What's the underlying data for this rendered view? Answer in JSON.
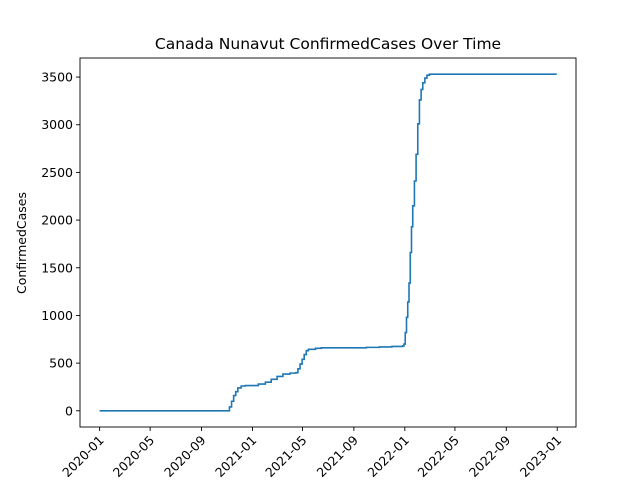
{
  "chart_data": {
    "type": "line",
    "title": "Canada Nunavut ConfirmedCases Over Time",
    "xlabel": "",
    "ylabel": "ConfirmedCases",
    "x_axis": "date",
    "xlim": [
      "2019-11-15",
      "2023-02-15"
    ],
    "ylim": [
      -170,
      3700
    ],
    "grid": false,
    "legend": "none",
    "line_color": "#1f77b4",
    "x_ticks": [
      "2020-01",
      "2020-05",
      "2020-09",
      "2021-01",
      "2021-05",
      "2021-09",
      "2022-01",
      "2022-05",
      "2022-09",
      "2023-01"
    ],
    "y_ticks": [
      0,
      500,
      1000,
      1500,
      2000,
      2500,
      3000,
      3500
    ],
    "series": [
      {
        "x": [
          "2020-01-01",
          "2020-11-05",
          "2020-11-07",
          "2020-11-12",
          "2020-11-17",
          "2020-11-22",
          "2020-11-27",
          "2020-12-05",
          "2020-12-15",
          "2021-01-01",
          "2021-01-15",
          "2021-02-01",
          "2021-02-15",
          "2021-03-01",
          "2021-03-15",
          "2021-04-01",
          "2021-04-15",
          "2021-04-20",
          "2021-04-25",
          "2021-04-30",
          "2021-05-05",
          "2021-05-10",
          "2021-05-15",
          "2021-06-01",
          "2021-06-15",
          "2021-07-01",
          "2021-08-01",
          "2021-09-01",
          "2021-10-01",
          "2021-11-01",
          "2021-12-01",
          "2021-12-27",
          "2021-12-30",
          "2022-01-02",
          "2022-01-05",
          "2022-01-08",
          "2022-01-11",
          "2022-01-14",
          "2022-01-17",
          "2022-01-20",
          "2022-01-24",
          "2022-01-28",
          "2022-02-01",
          "2022-02-05",
          "2022-02-09",
          "2022-02-13",
          "2022-02-18",
          "2022-02-23",
          "2022-03-01",
          "2022-03-06",
          "2022-03-11",
          "2022-03-16",
          "2022-03-22",
          "2022-04-01",
          "2022-04-15",
          "2022-12-31"
        ],
        "y": [
          0,
          0,
          40,
          100,
          160,
          200,
          240,
          260,
          265,
          265,
          280,
          300,
          330,
          360,
          385,
          395,
          400,
          440,
          490,
          540,
          590,
          630,
          645,
          655,
          660,
          660,
          660,
          660,
          665,
          670,
          675,
          680,
          700,
          820,
          980,
          1140,
          1340,
          1660,
          1930,
          2150,
          2410,
          2690,
          3010,
          3260,
          3370,
          3440,
          3490,
          3520,
          3530,
          3530,
          3530,
          3530,
          3530,
          3530,
          3530,
          3530
        ]
      }
    ]
  }
}
